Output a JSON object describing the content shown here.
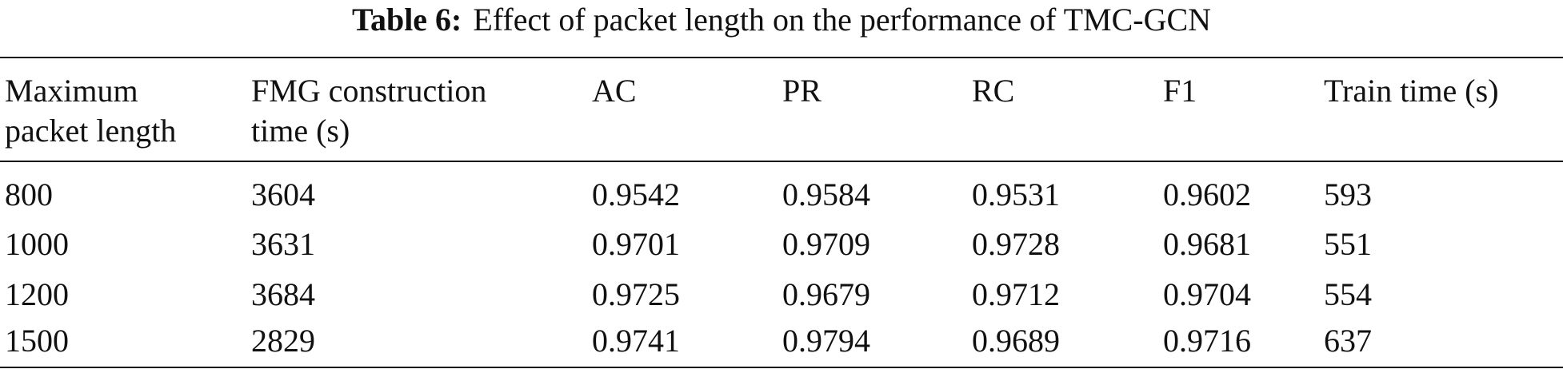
{
  "table": {
    "label": "Table 6:",
    "title": "Effect of packet length on the performance of TMC-GCN",
    "header": [
      [
        "Maximum",
        "packet length"
      ],
      [
        "FMG construction",
        "time (s)"
      ],
      [
        "AC"
      ],
      [
        "PR"
      ],
      [
        "RC"
      ],
      [
        "F1"
      ],
      [
        "Train time (s)"
      ]
    ],
    "rows": [
      [
        "800",
        "3604",
        "0.9542",
        "0.9584",
        "0.9531",
        "0.9602",
        "593"
      ],
      [
        "1000",
        "3631",
        "0.9701",
        "0.9709",
        "0.9728",
        "0.9681",
        "551"
      ],
      [
        "1200",
        "3684",
        "0.9725",
        "0.9679",
        "0.9712",
        "0.9704",
        "554"
      ],
      [
        "1500",
        "2829",
        "0.9741",
        "0.9794",
        "0.9689",
        "0.9716",
        "637"
      ]
    ]
  }
}
